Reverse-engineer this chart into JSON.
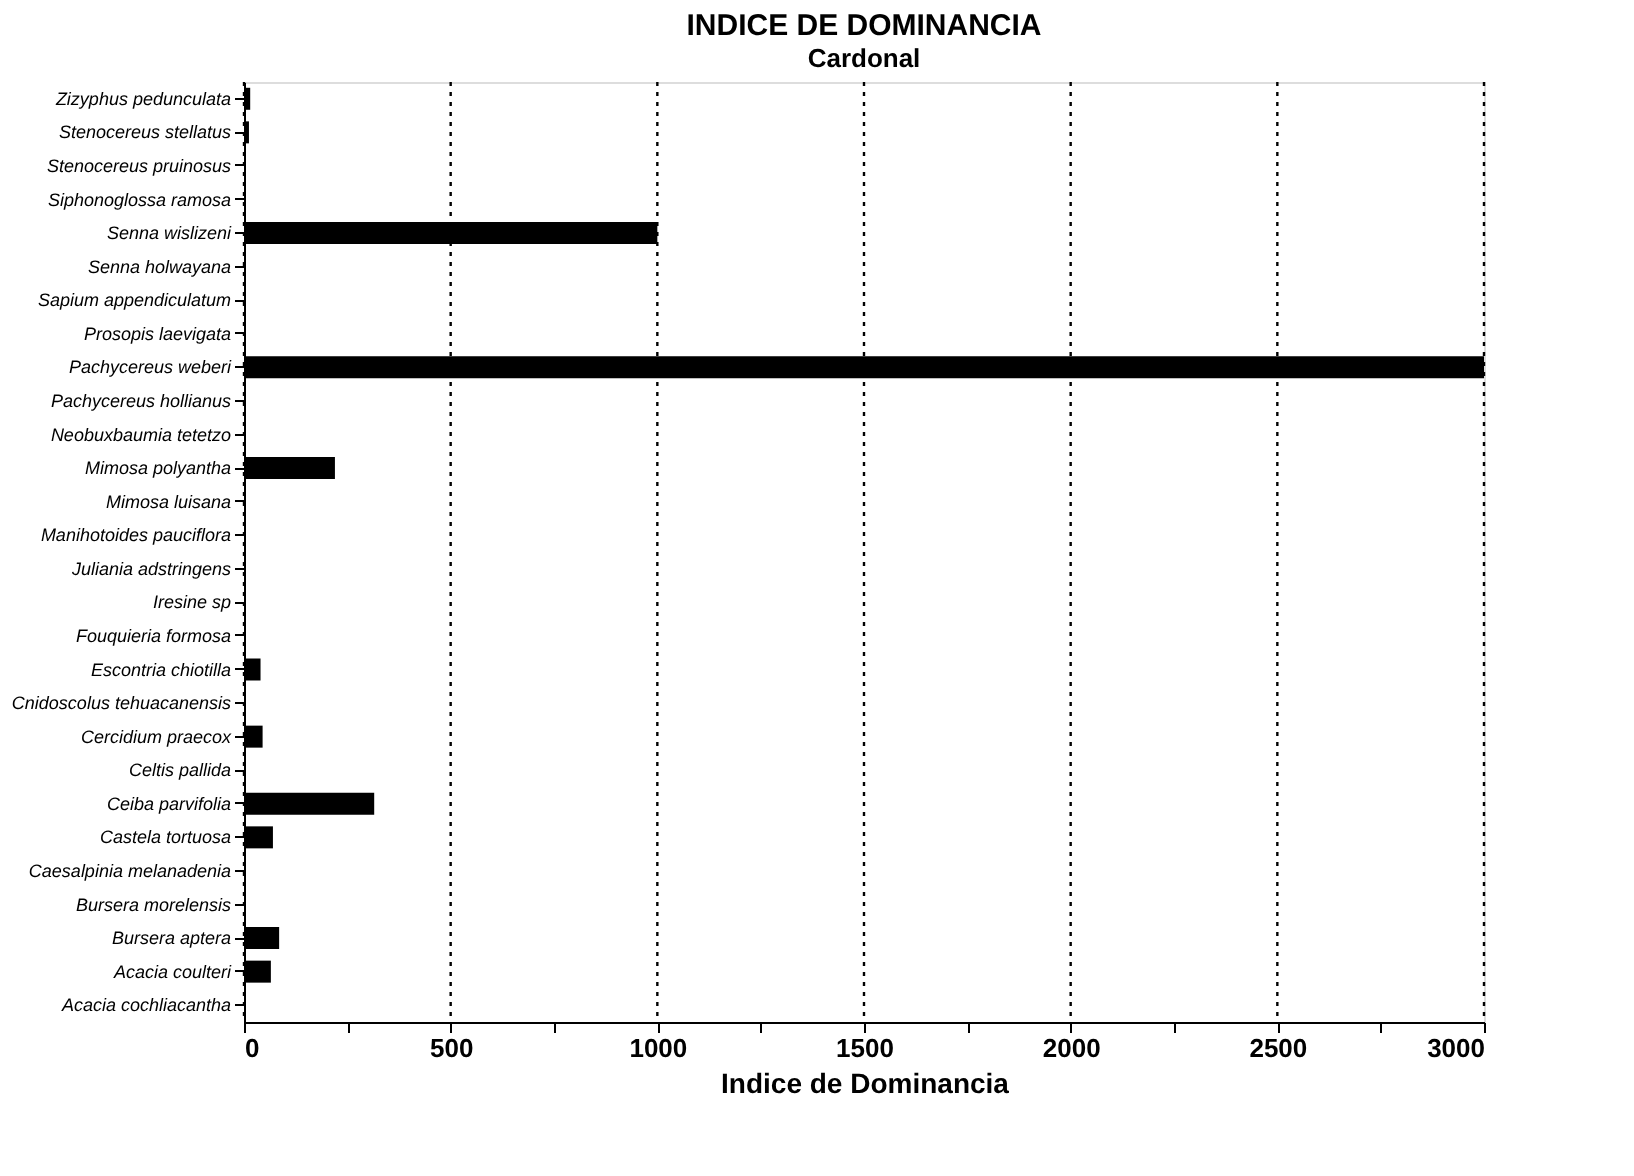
{
  "chart_data": {
    "type": "bar",
    "orientation": "horizontal",
    "title": "INDICE DE DOMINANCIA",
    "subtitle": "Cardonal",
    "xlabel": "Indice de Dominancia",
    "categories": [
      "Zizyphus pedunculata",
      "Stenocereus stellatus",
      "Stenocereus pruinosus",
      "Siphonoglossa ramosa",
      "Senna wislizeni",
      "Senna holwayana",
      "Sapium appendiculatum",
      "Prosopis laevigata",
      "Pachycereus weberi",
      "Pachycereus hollianus",
      "Neobuxbaumia tetetzo",
      "Mimosa polyantha",
      "Mimosa luisana",
      "Manihotoides pauciflora",
      "Juliania adstringens",
      "Iresine sp",
      "Fouquieria formosa",
      "Escontria chiotilla",
      "Cnidoscolus tehuacanensis",
      "Cercidium praecox",
      "Celtis pallida",
      "Ceiba parvifolia",
      "Castela tortuosa",
      "Caesalpinia melanadenia",
      "Bursera morelensis",
      "Bursera aptera",
      "Acacia coulteri",
      "Acacia cochliacantha"
    ],
    "values": [
      15,
      12,
      null,
      null,
      1000,
      null,
      null,
      null,
      3000,
      null,
      null,
      220,
      null,
      null,
      null,
      null,
      null,
      40,
      null,
      45,
      null,
      315,
      70,
      null,
      null,
      85,
      65,
      null
    ],
    "color": "#000000",
    "xlim": [
      0,
      3000
    ],
    "xticks": [
      0,
      {
        "value": 250,
        "label": null
      },
      500,
      {
        "value": 750,
        "label": null
      },
      1000,
      {
        "value": 1250,
        "label": null
      },
      1500,
      {
        "value": 1750,
        "label": null
      },
      2000,
      {
        "value": 2250,
        "label": null
      },
      2500,
      {
        "value": 2750,
        "label": null
      },
      3000
    ],
    "grid": "x",
    "line_style": "dotted"
  }
}
